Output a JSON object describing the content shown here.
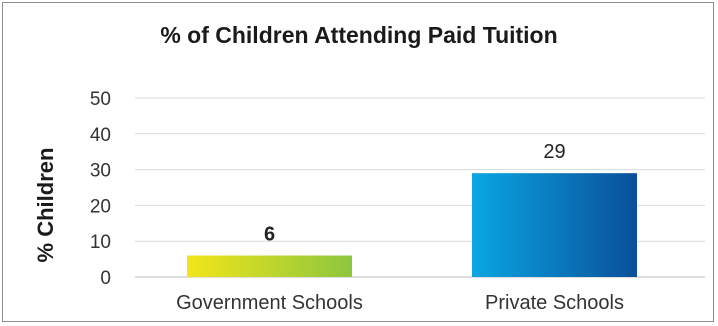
{
  "chart_data": {
    "type": "bar",
    "title": "% of Children Attending Paid Tuition",
    "xlabel": "",
    "ylabel": "% Children",
    "categories": [
      "Government Schools",
      "Private Schools"
    ],
    "values": [
      6,
      29
    ],
    "data_labels": [
      "6",
      "29"
    ],
    "data_label_weights": [
      "bold",
      "normal"
    ],
    "ylim": [
      0,
      50
    ],
    "yticks": [
      0,
      10,
      20,
      30,
      40,
      50
    ],
    "grid": true,
    "legend": "none",
    "bar_gradients": [
      [
        "#f2e51a",
        "#8dc63f"
      ],
      [
        "#0aa6e2",
        "#0a4f9a"
      ]
    ]
  }
}
